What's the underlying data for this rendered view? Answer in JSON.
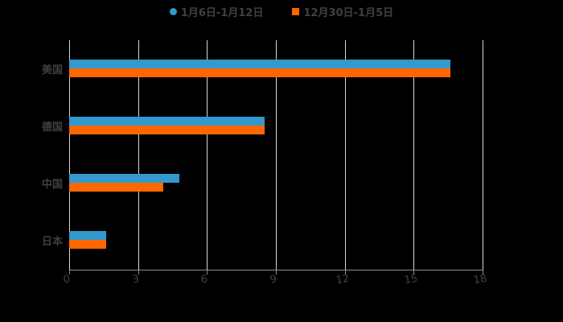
{
  "chart_data": {
    "type": "bar",
    "orientation": "horizontal",
    "title": "",
    "xlabel": "",
    "ylabel": "",
    "categories": [
      "美国",
      "德国",
      "中国",
      "日本"
    ],
    "series": [
      {
        "name": "1月6日-1月12日",
        "color": "#3399cc",
        "values": [
          16.6,
          8.5,
          4.8,
          1.6
        ]
      },
      {
        "name": "12月30日-1月5日",
        "color": "#ff6600",
        "values": [
          16.6,
          8.5,
          4.1,
          1.6
        ]
      }
    ],
    "xlim": [
      0,
      18
    ],
    "xticks": [
      "0",
      "3",
      "6",
      "9",
      "12",
      "15",
      "18"
    ],
    "grid": true,
    "legend_position": "top"
  },
  "legend": {
    "items": [
      {
        "label": "1月6日-1月12日",
        "color": "#3399cc"
      },
      {
        "label": "12月30日-1月5日",
        "color": "#ff6600"
      }
    ]
  }
}
